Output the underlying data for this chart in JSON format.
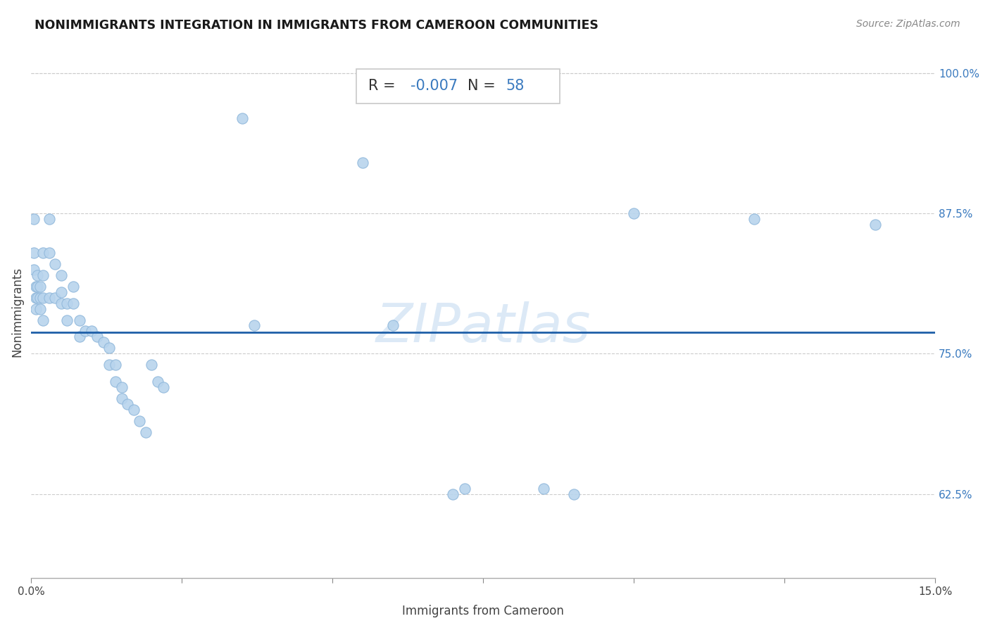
{
  "title": "NONIMMIGRANTS INTEGRATION IN IMMIGRANTS FROM CAMEROON COMMUNITIES",
  "source": "Source: ZipAtlas.com",
  "xlabel": "Immigrants from Cameroon",
  "ylabel": "Nonimmigrants",
  "xlim": [
    0.0,
    0.15
  ],
  "ylim": [
    0.55,
    1.025
  ],
  "xticks": [
    0.0,
    0.025,
    0.05,
    0.075,
    0.1,
    0.125,
    0.15
  ],
  "xticklabels": [
    "0.0%",
    "",
    "",
    "",
    "",
    "",
    "15.0%"
  ],
  "yticks": [
    0.625,
    0.75,
    0.875,
    1.0
  ],
  "yticklabels": [
    "62.5%",
    "75.0%",
    "87.5%",
    "100.0%"
  ],
  "R_val": "-0.007",
  "N_val": "58",
  "regression_y": 0.769,
  "scatter_color": "#b8d4ed",
  "scatter_edgecolor": "#90b8db",
  "scatter_size": 120,
  "regression_color": "#1e5fa8",
  "watermark": "ZIPatlas",
  "points_x": [
    0.0005,
    0.0005,
    0.0005,
    0.0008,
    0.0008,
    0.0008,
    0.001,
    0.001,
    0.001,
    0.0015,
    0.0015,
    0.0015,
    0.002,
    0.002,
    0.002,
    0.002,
    0.003,
    0.003,
    0.003,
    0.004,
    0.004,
    0.005,
    0.005,
    0.005,
    0.006,
    0.006,
    0.007,
    0.007,
    0.008,
    0.008,
    0.009,
    0.01,
    0.011,
    0.012,
    0.013,
    0.013,
    0.014,
    0.014,
    0.015,
    0.015,
    0.016,
    0.017,
    0.018,
    0.019,
    0.02,
    0.021,
    0.022,
    0.035,
    0.037,
    0.055,
    0.06,
    0.07,
    0.072,
    0.085,
    0.09,
    0.1,
    0.12,
    0.14
  ],
  "points_y": [
    0.87,
    0.84,
    0.825,
    0.81,
    0.8,
    0.79,
    0.82,
    0.81,
    0.8,
    0.81,
    0.8,
    0.79,
    0.84,
    0.82,
    0.8,
    0.78,
    0.87,
    0.84,
    0.8,
    0.83,
    0.8,
    0.82,
    0.805,
    0.795,
    0.795,
    0.78,
    0.81,
    0.795,
    0.78,
    0.765,
    0.77,
    0.77,
    0.765,
    0.76,
    0.755,
    0.74,
    0.74,
    0.725,
    0.72,
    0.71,
    0.705,
    0.7,
    0.69,
    0.68,
    0.74,
    0.725,
    0.72,
    0.96,
    0.775,
    0.92,
    0.775,
    0.625,
    0.63,
    0.63,
    0.625,
    0.875,
    0.87,
    0.865
  ]
}
